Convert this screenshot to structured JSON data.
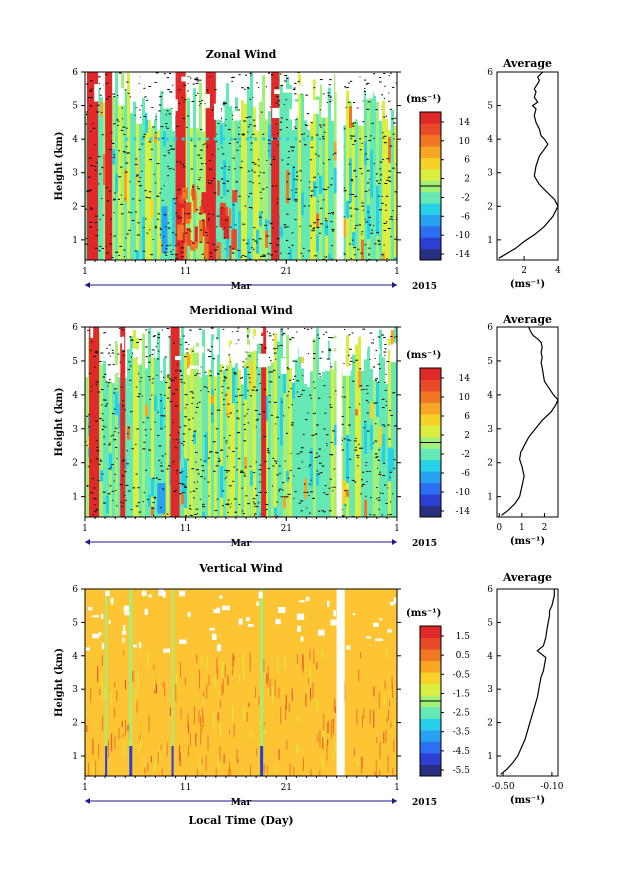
{
  "page": {
    "year_label": "2015",
    "x_axis_title": "Local Time (Day)",
    "month_label": "Mar"
  },
  "colors": {
    "scale": [
      "#262f80",
      "#2c3fd0",
      "#2d6ff0",
      "#2aa2f3",
      "#26d0e8",
      "#66e8b4",
      "#a4ef78",
      "#d9ee3e",
      "#f5d12a",
      "#f7a723",
      "#f07825",
      "#e84a2a",
      "#e02a2a"
    ],
    "vertical_background": "#fdc534",
    "missing": "#ffffff"
  },
  "chart_data": [
    {
      "type": "heatmap",
      "title": "Zonal Wind",
      "ylabel": "Height (km)",
      "xlabel": "Mar",
      "xticks": [
        "1",
        "11",
        "21",
        "1"
      ],
      "yticks": [
        "1",
        "2",
        "3",
        "4",
        "5",
        "6"
      ],
      "ylim": [
        0.4,
        6.0
      ],
      "x_range": [
        "Mar 1 2015",
        "Apr 1 2015"
      ],
      "colorbar": {
        "unit": "(ms⁻¹)",
        "ticks": [
          "14",
          "10",
          "6",
          "2",
          "-2",
          "-6",
          "-10",
          "-14"
        ],
        "range": [
          -16,
          16
        ]
      },
      "missing_day_intervals": [
        [
          26.0,
          26.7
        ]
      ]
    },
    {
      "type": "line",
      "title": "Average",
      "xlabel": "(ms⁻¹)",
      "xticks": [
        "2",
        "4"
      ],
      "yticks": [
        "1",
        "2",
        "3",
        "4",
        "5",
        "6"
      ],
      "xlim": [
        0.4,
        4.0
      ],
      "ylim": [
        0.4,
        6.0
      ],
      "series": [
        {
          "x": [
            0.5,
            1.0,
            1.5,
            2.0,
            2.6,
            3.2,
            3.7,
            4.0,
            3.8,
            3.4,
            2.9,
            2.6,
            2.7,
            2.9,
            3.2,
            3.4,
            3.2,
            3.0,
            2.9,
            2.7,
            2.6,
            2.7,
            2.5,
            2.8,
            2.6,
            2.7,
            2.6,
            2.8,
            2.9,
            2.8,
            3.1
          ],
          "y": [
            0.45,
            0.6,
            0.75,
            0.95,
            1.15,
            1.4,
            1.7,
            2.0,
            2.2,
            2.4,
            2.65,
            2.9,
            3.2,
            3.5,
            3.7,
            3.85,
            4.0,
            4.1,
            4.3,
            4.5,
            4.7,
            4.9,
            5.0,
            5.1,
            5.25,
            5.4,
            5.5,
            5.65,
            5.75,
            5.85,
            6.0
          ]
        }
      ]
    },
    {
      "type": "heatmap",
      "title": "Meridional Wind",
      "ylabel": "Height (km)",
      "xlabel": "Mar",
      "xticks": [
        "1",
        "11",
        "21",
        "1"
      ],
      "yticks": [
        "1",
        "2",
        "3",
        "4",
        "5",
        "6"
      ],
      "ylim": [
        0.4,
        6.0
      ],
      "x_range": [
        "Mar 1 2015",
        "Apr 1 2015"
      ],
      "colorbar": {
        "unit": "(ms⁻¹)",
        "ticks": [
          "14",
          "10",
          "6",
          "2",
          "-2",
          "-6",
          "-10",
          "-14"
        ],
        "range": [
          -16,
          16
        ]
      },
      "missing_day_intervals": [
        [
          26.0,
          26.5
        ]
      ]
    },
    {
      "type": "line",
      "title": "Average",
      "xlabel": "(ms⁻¹)",
      "xticks": [
        "0",
        "1",
        "2"
      ],
      "yticks": [
        "1",
        "2",
        "3",
        "4",
        "5",
        "6"
      ],
      "xlim": [
        -0.1,
        2.6
      ],
      "ylim": [
        0.4,
        6.0
      ],
      "series": [
        {
          "x": [
            0.1,
            0.4,
            0.7,
            0.9,
            1.0,
            1.1,
            1.0,
            0.9,
            0.95,
            1.1,
            1.3,
            1.6,
            1.9,
            2.3,
            2.5,
            2.6,
            2.4,
            2.2,
            2.0,
            1.95,
            1.9,
            1.85,
            1.9,
            1.85,
            1.9,
            1.85,
            1.7,
            1.5,
            1.4,
            1.3
          ],
          "y": [
            0.45,
            0.6,
            0.8,
            1.0,
            1.3,
            1.6,
            1.9,
            2.1,
            2.3,
            2.5,
            2.75,
            3.0,
            3.25,
            3.5,
            3.7,
            3.85,
            4.0,
            4.2,
            4.4,
            4.6,
            4.8,
            4.95,
            5.1,
            5.25,
            5.4,
            5.55,
            5.65,
            5.75,
            5.85,
            6.0
          ]
        }
      ]
    },
    {
      "type": "heatmap",
      "title": "Vertical Wind",
      "ylabel": "Height (km)",
      "xlabel": "Mar",
      "xticks": [
        "1",
        "11",
        "21",
        "1"
      ],
      "yticks": [
        "1",
        "2",
        "3",
        "4",
        "5",
        "6"
      ],
      "ylim": [
        0.4,
        6.0
      ],
      "x_range": [
        "Mar 1 2015",
        "Apr 1 2015"
      ],
      "colorbar": {
        "unit": "(ms⁻¹)",
        "ticks": [
          "1.5",
          "0.5",
          "-0.5",
          "-1.5",
          "-2.5",
          "-3.5",
          "-4.5",
          "-5.5"
        ],
        "range": [
          -6,
          2
        ]
      },
      "missing_day_intervals": [
        [
          26.0,
          26.8
        ]
      ]
    },
    {
      "type": "line",
      "title": "Average",
      "xlabel": "(ms⁻¹)",
      "xticks": [
        "-0.50",
        "-0.10"
      ],
      "yticks": [
        "1",
        "2",
        "3",
        "4",
        "5",
        "6"
      ],
      "xlim": [
        -0.55,
        -0.05
      ],
      "ylim": [
        0.4,
        6.0
      ],
      "series": [
        {
          "x": [
            -0.52,
            -0.47,
            -0.42,
            -0.38,
            -0.35,
            -0.32,
            -0.3,
            -0.28,
            -0.26,
            -0.24,
            -0.22,
            -0.21,
            -0.2,
            -0.19,
            -0.17,
            -0.16,
            -0.15,
            -0.22,
            -0.17,
            -0.15,
            -0.14,
            -0.13,
            -0.12,
            -0.12,
            -0.1,
            -0.09,
            -0.08,
            -0.08
          ],
          "y": [
            0.45,
            0.6,
            0.8,
            1.0,
            1.25,
            1.5,
            1.75,
            2.0,
            2.25,
            2.5,
            2.75,
            2.95,
            3.15,
            3.35,
            3.55,
            3.75,
            3.95,
            4.15,
            4.3,
            4.55,
            4.8,
            5.0,
            5.2,
            5.35,
            5.5,
            5.65,
            5.8,
            6.0
          ]
        }
      ]
    }
  ]
}
